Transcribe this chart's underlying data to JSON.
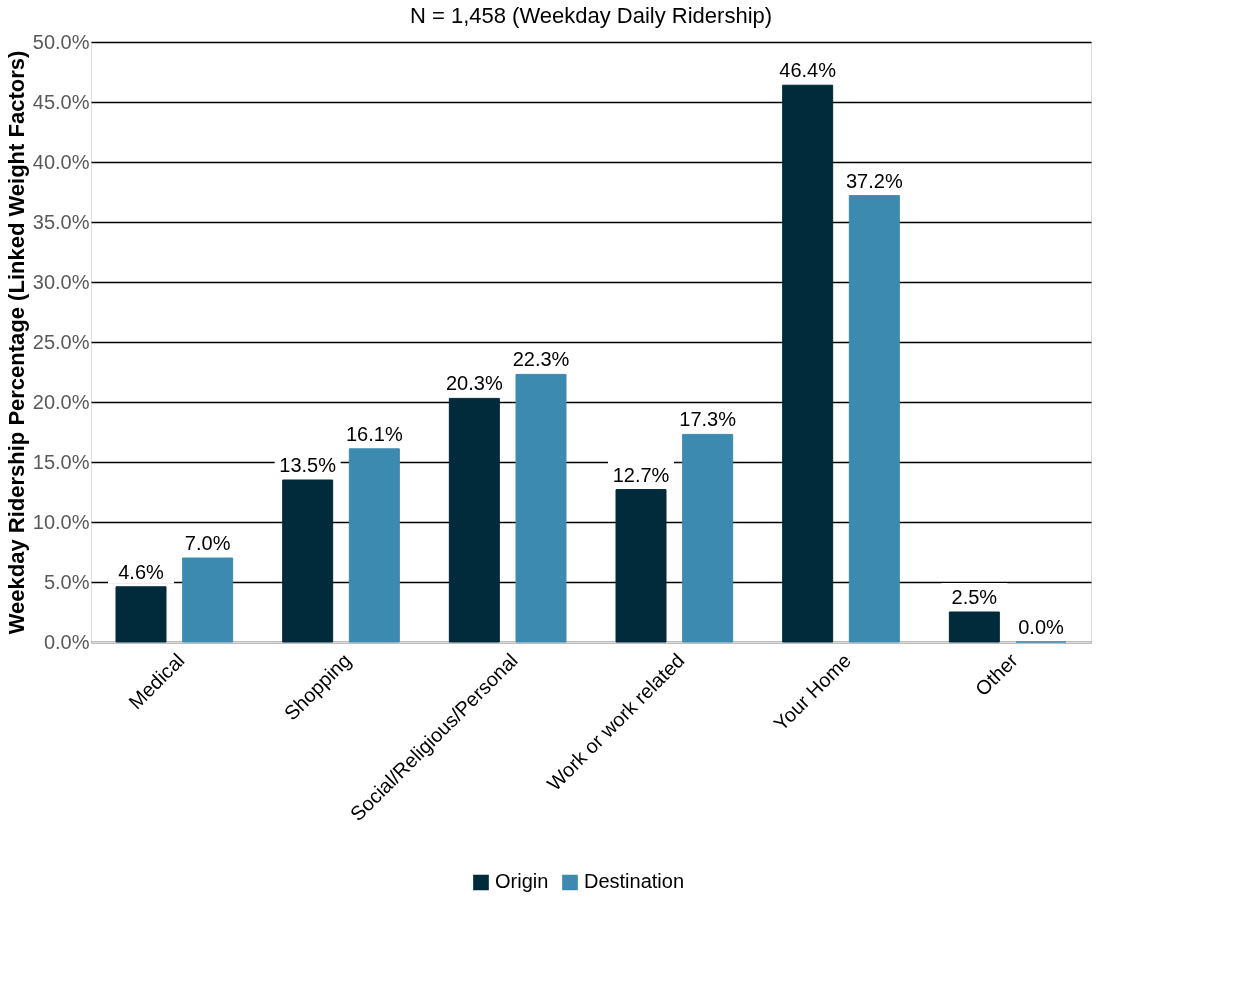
{
  "chart_data": {
    "type": "bar",
    "title": "N = 1,458 (Weekday Daily Ridership)",
    "ylabel": "Weekday Ridership Percentage (Linked Weight Factors)",
    "categories": [
      "Medical",
      "Shopping",
      "Social/Religious/Personal",
      "Work or work related",
      "Your Home",
      "Other"
    ],
    "series": [
      {
        "name": "Origin",
        "color": "#012a3a",
        "values": [
          4.6,
          13.5,
          20.3,
          12.7,
          46.4,
          2.5
        ],
        "value_labels": [
          "4.6%",
          "13.5%",
          "20.3%",
          "12.7%",
          "46.4%",
          "2.5%"
        ]
      },
      {
        "name": "Destination",
        "color": "#3d8ab0",
        "values": [
          7.0,
          16.1,
          22.3,
          17.3,
          37.2,
          0.0
        ],
        "value_labels": [
          "7.0%",
          "16.1%",
          "22.3%",
          "17.3%",
          "37.2%",
          "0.0%"
        ]
      }
    ],
    "ylim": [
      0,
      50
    ],
    "yticks": [
      {
        "value": 0,
        "label": "0.0%"
      },
      {
        "value": 5,
        "label": "5.0%"
      },
      {
        "value": 10,
        "label": "10.0%"
      },
      {
        "value": 15,
        "label": "15.0%"
      },
      {
        "value": 20,
        "label": "20.0%"
      },
      {
        "value": 25,
        "label": "25.0%"
      },
      {
        "value": 30,
        "label": "30.0%"
      },
      {
        "value": 35,
        "label": "35.0%"
      },
      {
        "value": 40,
        "label": "40.0%"
      },
      {
        "value": 45,
        "label": "45.0%"
      },
      {
        "value": 50,
        "label": "50.0%"
      }
    ],
    "grid": "y",
    "legend": "bottom"
  }
}
